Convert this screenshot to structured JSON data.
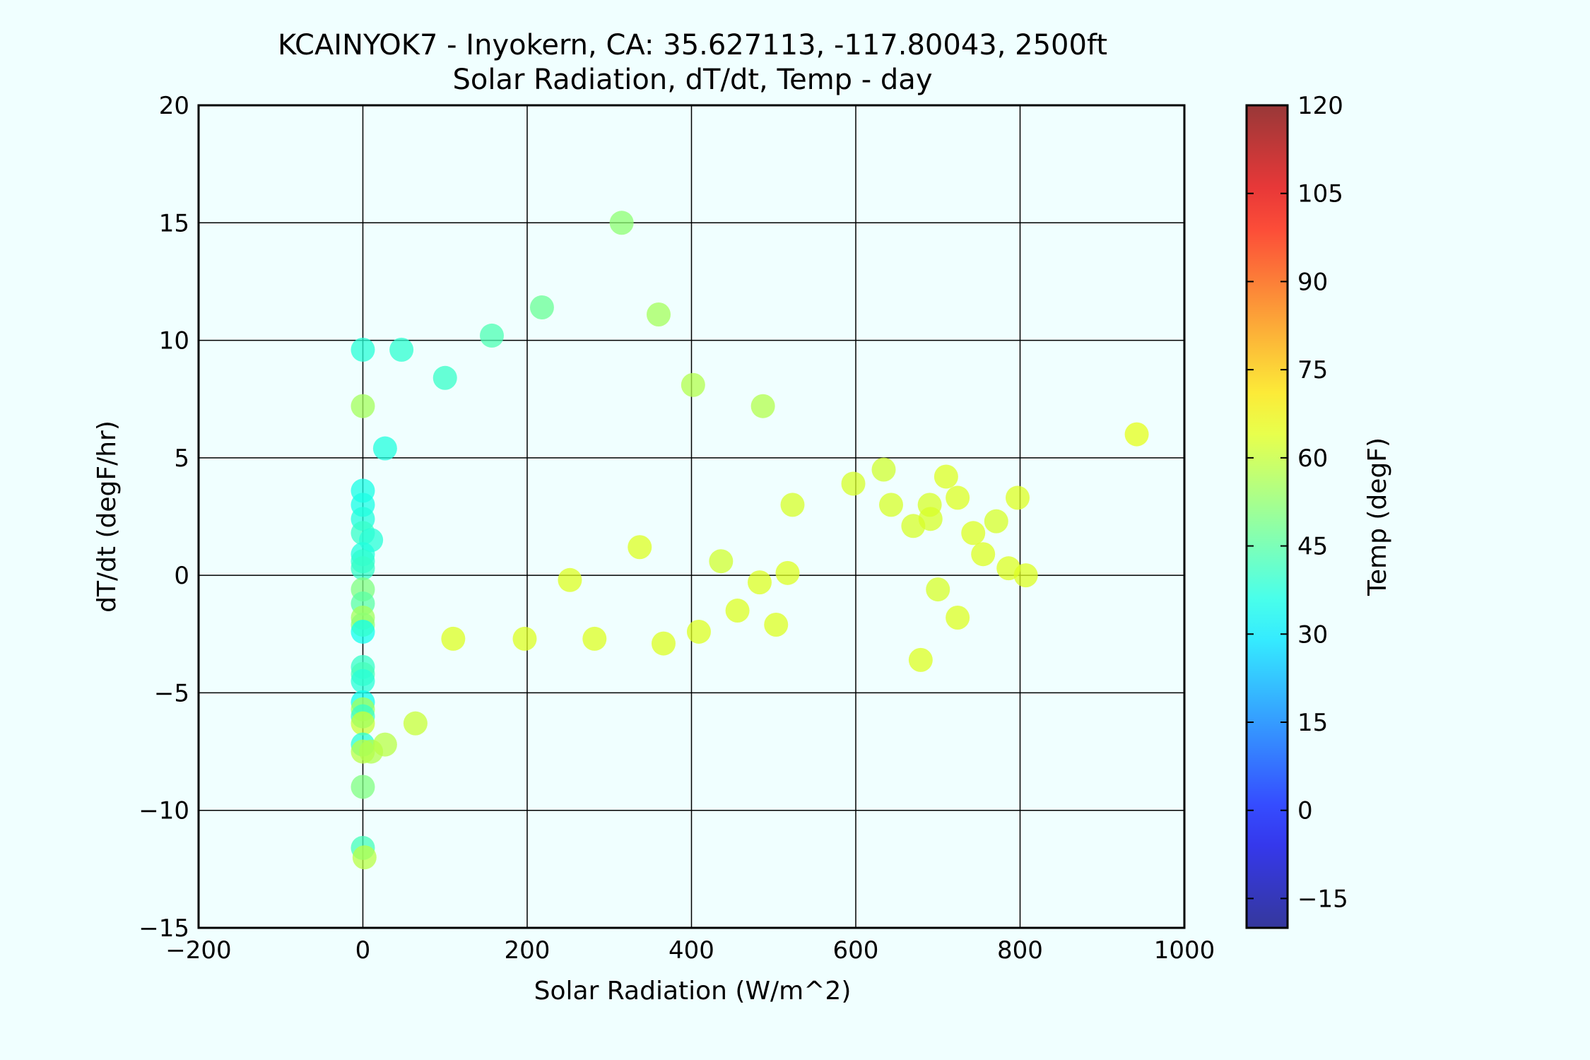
{
  "chart_data": {
    "type": "scatter",
    "title": [
      "KCAINYOK7 - Inyokern, CA: 35.627113, -117.80043, 2500ft",
      "Solar Radiation, dT/dt, Temp - day"
    ],
    "xlabel": "Solar Radiation (W/m^2)",
    "ylabel": "dT/dt (degF/hr)",
    "xlim": [
      -200,
      1000
    ],
    "ylim": [
      -15,
      20
    ],
    "xticks": [
      -200,
      0,
      200,
      400,
      600,
      800,
      1000
    ],
    "yticks": [
      -15,
      -10,
      -5,
      0,
      5,
      10,
      15,
      20
    ],
    "xtick_labels": [
      "−200",
      "0",
      "200",
      "400",
      "600",
      "800",
      "1000"
    ],
    "ytick_labels": [
      "−15",
      "−10",
      "−5",
      "0",
      "5",
      "10",
      "15",
      "20"
    ],
    "grid": true,
    "colormap": "jet",
    "colorbar": {
      "label": "Temp (degF)",
      "range": [
        -20,
        120
      ],
      "ticks": [
        -15,
        0,
        15,
        30,
        45,
        60,
        75,
        90,
        105,
        120
      ],
      "tick_labels": [
        "−15",
        "0",
        "15",
        "30",
        "45",
        "60",
        "75",
        "90",
        "105",
        "120"
      ]
    },
    "points": [
      {
        "x": 0,
        "y": 9.6,
        "temp": 38
      },
      {
        "x": 47,
        "y": 9.6,
        "temp": 39
      },
      {
        "x": 100,
        "y": 8.4,
        "temp": 40
      },
      {
        "x": 157,
        "y": 10.2,
        "temp": 43
      },
      {
        "x": 218,
        "y": 11.4,
        "temp": 47
      },
      {
        "x": 315,
        "y": 15.0,
        "temp": 52
      },
      {
        "x": 360,
        "y": 11.1,
        "temp": 55
      },
      {
        "x": 402,
        "y": 8.1,
        "temp": 57
      },
      {
        "x": 487,
        "y": 7.2,
        "temp": 57
      },
      {
        "x": 0,
        "y": 7.2,
        "temp": 55
      },
      {
        "x": 27,
        "y": 5.4,
        "temp": 37
      },
      {
        "x": 942,
        "y": 6.0,
        "temp": 64
      },
      {
        "x": 0,
        "y": 3.6,
        "temp": 36
      },
      {
        "x": 0,
        "y": 3.0,
        "temp": 36
      },
      {
        "x": 0,
        "y": 2.4,
        "temp": 37
      },
      {
        "x": 0,
        "y": 1.8,
        "temp": 40
      },
      {
        "x": 10,
        "y": 1.5,
        "temp": 38
      },
      {
        "x": 0,
        "y": 0.9,
        "temp": 37
      },
      {
        "x": 0,
        "y": 0.6,
        "temp": 39
      },
      {
        "x": 0,
        "y": 0.3,
        "temp": 40
      },
      {
        "x": 0,
        "y": -0.6,
        "temp": 50
      },
      {
        "x": 0,
        "y": -1.2,
        "temp": 45
      },
      {
        "x": 0,
        "y": -1.8,
        "temp": 55
      },
      {
        "x": 0,
        "y": -2.1,
        "temp": 52
      },
      {
        "x": 0,
        "y": -2.4,
        "temp": 35
      },
      {
        "x": 0,
        "y": -3.9,
        "temp": 40
      },
      {
        "x": 0,
        "y": -4.2,
        "temp": 42
      },
      {
        "x": 0,
        "y": -4.5,
        "temp": 38
      },
      {
        "x": 0,
        "y": -5.4,
        "temp": 35
      },
      {
        "x": 0,
        "y": -5.7,
        "temp": 55
      },
      {
        "x": 0,
        "y": -6.0,
        "temp": 40
      },
      {
        "x": 0,
        "y": -6.3,
        "temp": 60
      },
      {
        "x": 0,
        "y": -7.2,
        "temp": 38
      },
      {
        "x": 0,
        "y": -7.5,
        "temp": 58
      },
      {
        "x": 10,
        "y": -7.5,
        "temp": 57
      },
      {
        "x": 27,
        "y": -7.2,
        "temp": 58
      },
      {
        "x": 64,
        "y": -6.3,
        "temp": 60
      },
      {
        "x": 0,
        "y": -9.0,
        "temp": 50
      },
      {
        "x": 0,
        "y": -11.6,
        "temp": 42
      },
      {
        "x": 2,
        "y": -12.0,
        "temp": 58
      },
      {
        "x": 110,
        "y": -2.7,
        "temp": 63
      },
      {
        "x": 197,
        "y": -2.7,
        "temp": 63
      },
      {
        "x": 252,
        "y": -0.2,
        "temp": 63
      },
      {
        "x": 282,
        "y": -2.7,
        "temp": 63
      },
      {
        "x": 337,
        "y": 1.2,
        "temp": 63
      },
      {
        "x": 366,
        "y": -2.9,
        "temp": 63
      },
      {
        "x": 409,
        "y": -2.4,
        "temp": 63
      },
      {
        "x": 436,
        "y": 0.6,
        "temp": 61
      },
      {
        "x": 456,
        "y": -1.5,
        "temp": 63
      },
      {
        "x": 483,
        "y": -0.3,
        "temp": 63
      },
      {
        "x": 503,
        "y": -2.1,
        "temp": 63
      },
      {
        "x": 517,
        "y": 0.1,
        "temp": 63
      },
      {
        "x": 523,
        "y": 3.0,
        "temp": 62
      },
      {
        "x": 597,
        "y": 3.9,
        "temp": 62
      },
      {
        "x": 634,
        "y": 4.5,
        "temp": 61
      },
      {
        "x": 643,
        "y": 3.0,
        "temp": 62
      },
      {
        "x": 670,
        "y": 2.1,
        "temp": 62
      },
      {
        "x": 679,
        "y": -3.6,
        "temp": 63
      },
      {
        "x": 690,
        "y": 3.0,
        "temp": 62
      },
      {
        "x": 691,
        "y": 2.4,
        "temp": 62
      },
      {
        "x": 700,
        "y": -0.6,
        "temp": 62
      },
      {
        "x": 710,
        "y": 4.2,
        "temp": 63
      },
      {
        "x": 724,
        "y": 3.3,
        "temp": 63
      },
      {
        "x": 724,
        "y": -1.8,
        "temp": 63
      },
      {
        "x": 743,
        "y": 1.8,
        "temp": 63
      },
      {
        "x": 755,
        "y": 0.9,
        "temp": 63
      },
      {
        "x": 771,
        "y": 2.3,
        "temp": 62
      },
      {
        "x": 786,
        "y": 0.3,
        "temp": 63
      },
      {
        "x": 797,
        "y": 3.3,
        "temp": 63
      },
      {
        "x": 807,
        "y": 0.0,
        "temp": 63
      }
    ]
  }
}
